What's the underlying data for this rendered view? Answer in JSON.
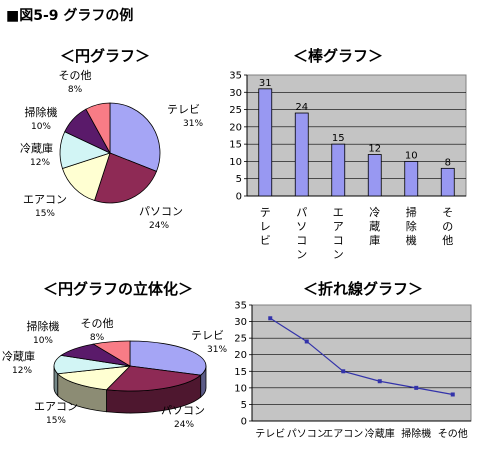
{
  "figure_title": "■図5-9 グラフの例",
  "colors": {
    "purple": "#a5a5f5",
    "maroon": "#8e2a55",
    "cream": "#ffffd2",
    "cyan": "#d2f5f5",
    "deep_purple": "#5a1a6a",
    "salmon": "#f87c86",
    "bar": "#9898f2",
    "plot_bg": "#c4c4c4",
    "line": "#3333aa"
  },
  "chart_data": [
    {
      "type": "pie",
      "title": "＜円グラフ＞",
      "labels": [
        "テレビ",
        "パソコン",
        "エアコン",
        "冷蔵庫",
        "掃除機",
        "その他"
      ],
      "values": [
        31,
        24,
        15,
        12,
        10,
        8
      ],
      "value_labels": [
        "31%",
        "24%",
        "15%",
        "12%",
        "10%",
        "8%"
      ]
    },
    {
      "type": "bar",
      "title": "＜棒グラフ＞",
      "categories": [
        "テレビ",
        "パソコン",
        "エアコン",
        "冷蔵庫",
        "掃除機",
        "その他"
      ],
      "values": [
        31,
        24,
        15,
        12,
        10,
        8
      ],
      "ylim": [
        0,
        35
      ],
      "yticks": [
        0,
        5,
        10,
        15,
        20,
        25,
        30,
        35
      ],
      "grid": true
    },
    {
      "type": "pie",
      "title": "＜円グラフの立体化＞",
      "labels": [
        "テレビ",
        "パソコン",
        "エアコン",
        "冷蔵庫",
        "掃除機",
        "その他"
      ],
      "values": [
        31,
        24,
        15,
        12,
        10,
        8
      ],
      "value_labels": [
        "31%",
        "24%",
        "15%",
        "12%",
        "10%",
        "8%"
      ]
    },
    {
      "type": "line",
      "title": "＜折れ線グラフ＞",
      "categories": [
        "テレビ",
        "パソコン",
        "エアコン",
        "冷蔵庫",
        "掃除機",
        "その他"
      ],
      "values": [
        31,
        24,
        15,
        12,
        10,
        8
      ],
      "ylim": [
        0,
        35
      ],
      "yticks": [
        0,
        5,
        10,
        15,
        20,
        25,
        30,
        35
      ],
      "grid": true
    }
  ]
}
